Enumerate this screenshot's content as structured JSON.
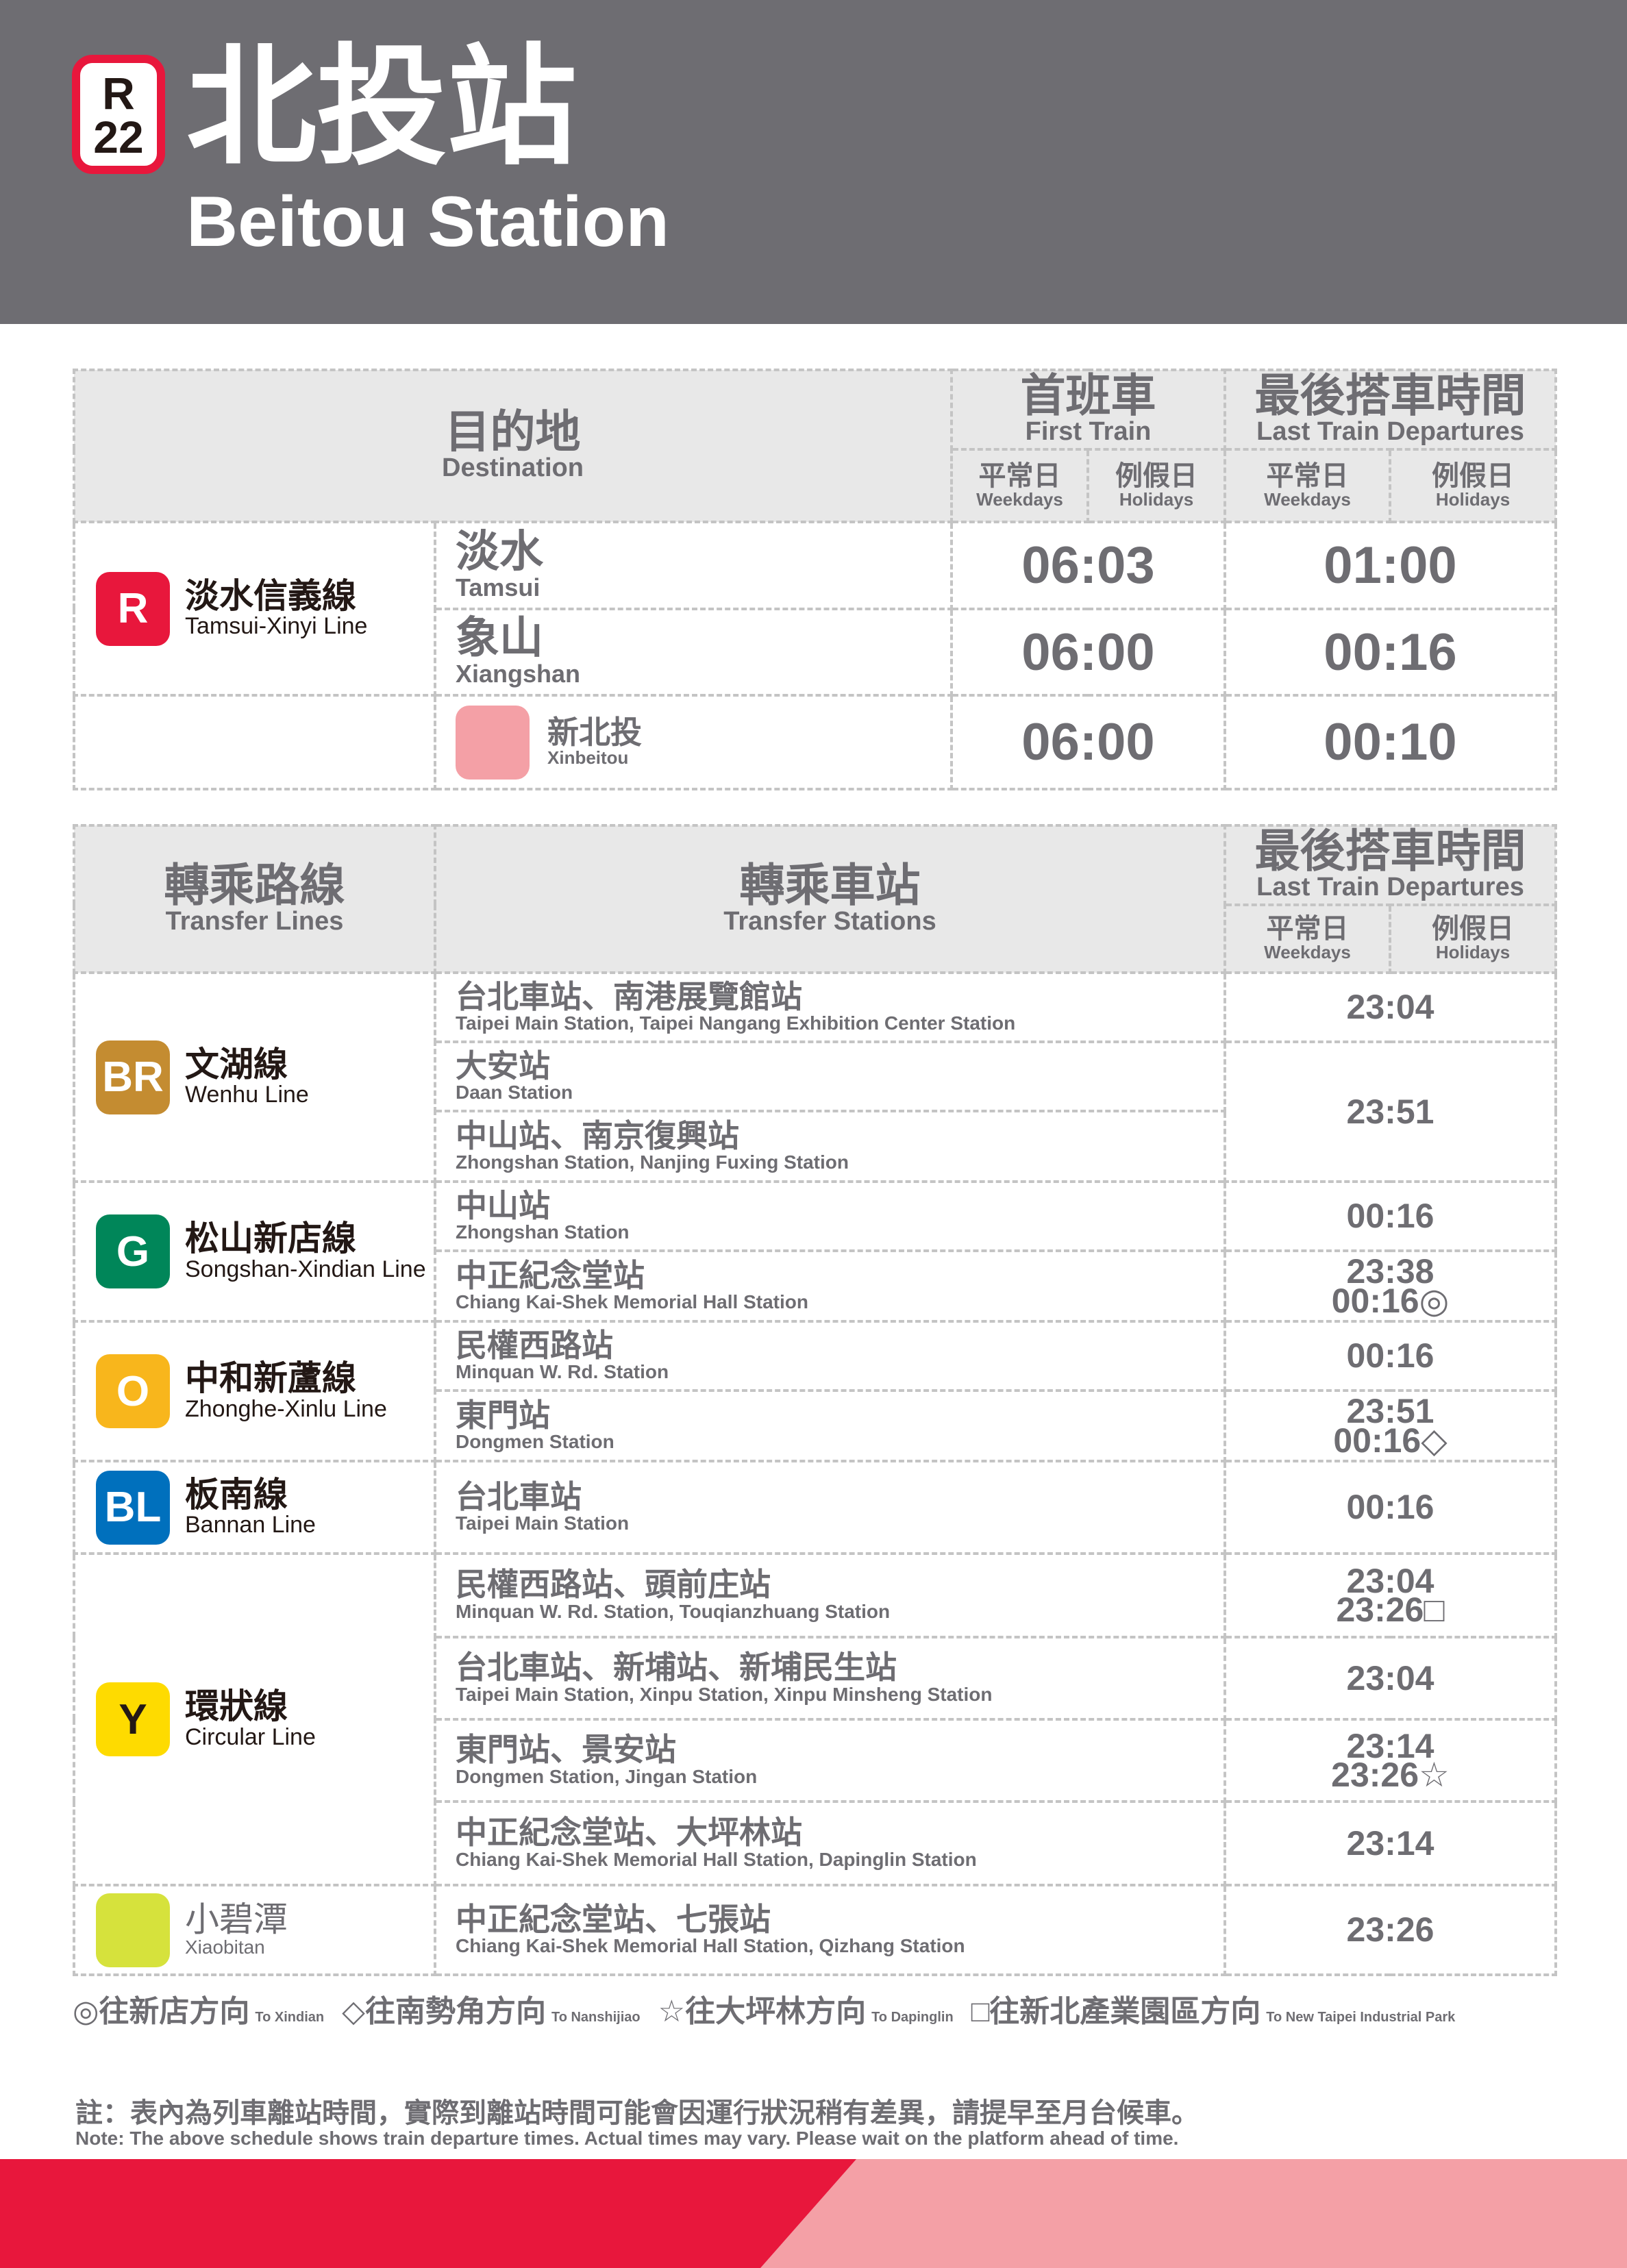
{
  "station": {
    "code_line": "R",
    "code_num": "22",
    "name_zh": "北投站",
    "name_en": "Beitou Station"
  },
  "table1": {
    "dest_zh": "目的地",
    "dest_en": "Destination",
    "first_zh": "首班車",
    "first_en": "First Train",
    "last_zh": "最後搭車時間",
    "last_en": "Last Train Departures",
    "weekdays_zh": "平常日",
    "weekdays_en": "Weekdays",
    "holidays_zh": "例假日",
    "holidays_en": "Holidays",
    "line": {
      "code": "R",
      "zh": "淡水信義線",
      "en": "Tamsui-Xinyi Line",
      "color": "#e8173c"
    },
    "rows": [
      {
        "zh": "淡水",
        "en": "Tamsui",
        "first": "06:03",
        "last": "01:00"
      },
      {
        "zh": "象山",
        "en": "Xiangshan",
        "first": "06:00",
        "last": "00:16"
      },
      {
        "zh": "新北投",
        "en": "Xinbeitou",
        "first": "06:00",
        "last": "00:10",
        "color": "#f4a0a6"
      }
    ]
  },
  "table2": {
    "lines_zh": "轉乘路線",
    "lines_en": "Transfer Lines",
    "stations_zh": "轉乘車站",
    "stations_en": "Transfer Stations",
    "last_zh": "最後搭車時間",
    "last_en": "Last Train Departures",
    "weekdays_zh": "平常日",
    "weekdays_en": "Weekdays",
    "holidays_zh": "例假日",
    "holidays_en": "Holidays",
    "groups": [
      {
        "code": "BR",
        "zh": "文湖線",
        "en": "Wenhu Line",
        "color": "#c48c31",
        "rows": [
          {
            "zh": "台北車站、南港展覽館站",
            "en": "Taipei Main Station, Taipei Nangang Exhibition Center Station",
            "time": [
              "23:04"
            ]
          },
          {
            "zh": "大安站",
            "en": "Daan Station",
            "time": [
              "23:51"
            ],
            "span": 2
          },
          {
            "zh": "中山站、南京復興站",
            "en": "Zhongshan Station, Nanjing Fuxing Station"
          }
        ]
      },
      {
        "code": "G",
        "zh": "松山新店線",
        "en": "Songshan-Xindian Line",
        "color": "#008659",
        "rows": [
          {
            "zh": "中山站",
            "en": "Zhongshan Station",
            "time": [
              "00:16"
            ]
          },
          {
            "zh": "中正紀念堂站",
            "en": "Chiang Kai-Shek Memorial Hall Station",
            "time": [
              "23:38",
              "00:16◎"
            ]
          }
        ]
      },
      {
        "code": "O",
        "zh": "中和新蘆線",
        "en": "Zhonghe-Xinlu Line",
        "color": "#f8b61c",
        "rows": [
          {
            "zh": "民權西路站",
            "en": "Minquan W. Rd. Station",
            "time": [
              "00:16"
            ]
          },
          {
            "zh": "東門站",
            "en": "Dongmen Station",
            "time": [
              "23:51",
              "00:16◇"
            ]
          }
        ]
      },
      {
        "code": "BL",
        "zh": "板南線",
        "en": "Bannan Line",
        "color": "#0070bd",
        "rows": [
          {
            "zh": "台北車站",
            "en": "Taipei Main Station",
            "time": [
              "00:16"
            ]
          }
        ]
      },
      {
        "code": "Y",
        "zh": "環狀線",
        "en": "Circular Line",
        "color": "#fedb00",
        "text_color": "#231815",
        "rows": [
          {
            "zh": "民權西路站、頭前庄站",
            "en": "Minquan W. Rd. Station, Touqianzhuang Station",
            "time": [
              "23:04",
              "23:26□"
            ]
          },
          {
            "zh": "台北車站、新埔站、新埔民生站",
            "en": "Taipei Main Station, Xinpu Station, Xinpu Minsheng Station",
            "time": [
              "23:04"
            ]
          },
          {
            "zh": "東門站、景安站",
            "en": "Dongmen Station, Jingan Station",
            "time": [
              "23:14",
              "23:26☆"
            ]
          },
          {
            "zh": "中正紀念堂站、大坪林站",
            "en": "Chiang Kai-Shek Memorial Hall Station, Dapinglin Station",
            "time": [
              "23:14"
            ]
          }
        ]
      },
      {
        "code": "",
        "zh": "小碧潭",
        "en": "Xiaobitan",
        "color": "#d6e23c",
        "light": true,
        "rows": [
          {
            "zh": "中正紀念堂站、七張站",
            "en": "Chiang Kai-Shek Memorial Hall Station, Qizhang Station",
            "time": [
              "23:26"
            ]
          }
        ]
      }
    ]
  },
  "legend": [
    {
      "zh": "◎往新店方向",
      "en": "To Xindian"
    },
    {
      "zh": "◇往南勢角方向",
      "en": "To Nanshijiao"
    },
    {
      "zh": "☆往大坪林方向",
      "en": "To Dapinglin"
    },
    {
      "zh": "□往新北產業園區方向",
      "en": "To New Taipei Industrial Park"
    }
  ],
  "note": {
    "zh": "註：表內為列車離站時間，實際到離站時間可能會因運行狀況稍有差異，請提早至月台候車。",
    "en": "Note: The above schedule shows train departure times. Actual times may vary. Please wait on the platform ahead of time."
  },
  "colors": {
    "header": "#6e6d72",
    "red": "#e8173c",
    "pink": "#f4a0a6"
  }
}
